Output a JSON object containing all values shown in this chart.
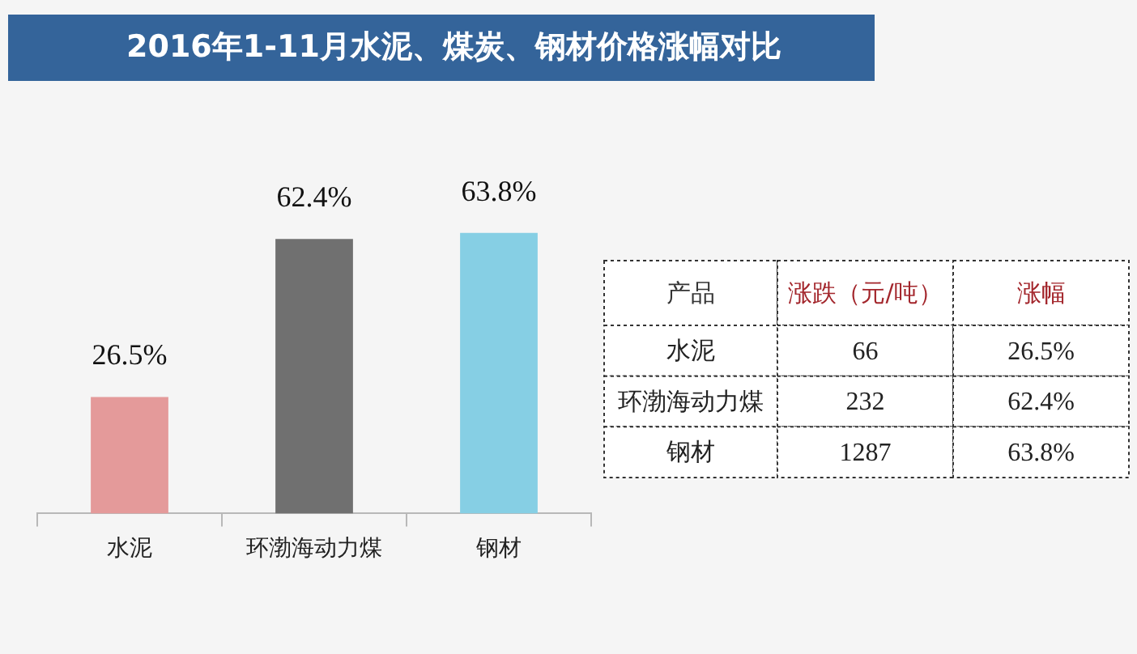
{
  "chart_data": [
    {
      "type": "bar",
      "title": "2016年1-11月水泥、煤炭、钢材价格涨幅对比",
      "categories": [
        "水泥",
        "环渤海动力煤",
        "钢材"
      ],
      "values": [
        26.5,
        62.4,
        63.8
      ],
      "colors": [
        "#e49a9a",
        "#707070",
        "#86cfe4"
      ],
      "value_labels": [
        "26.5%",
        "62.4%",
        "63.8%"
      ],
      "tick_labels": "x"
    },
    {
      "type": "other",
      "ylabel": "产品",
      "categories": [
        "涨跌（元/吨）",
        "涨幅"
      ],
      "y_categories": [
        "水泥",
        "环渤海动力煤",
        "钢材"
      ],
      "cell_labels": [
        [
          "66",
          "26.5%"
        ],
        [
          "232",
          "62.4%"
        ],
        [
          "1287",
          "63.8%"
        ]
      ]
    }
  ]
}
